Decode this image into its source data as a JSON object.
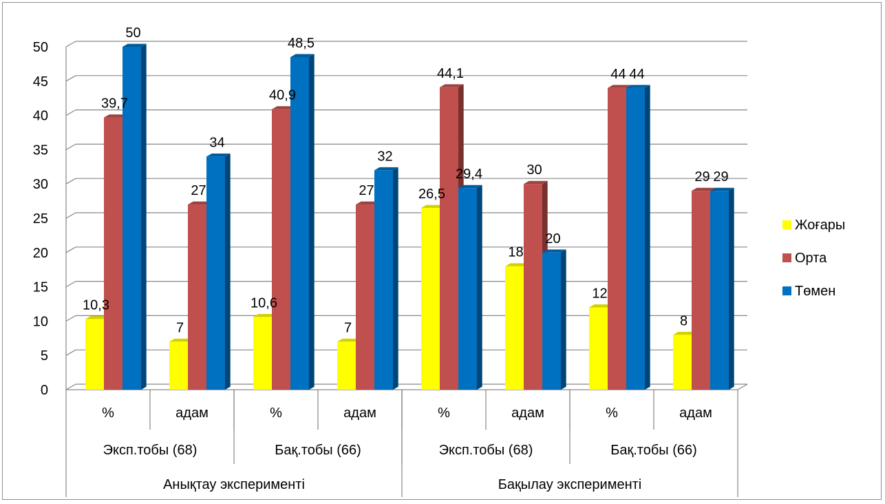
{
  "chart_data": {
    "type": "bar",
    "title": "",
    "xlabel": "",
    "ylabel": "",
    "ylim": [
      0,
      50
    ],
    "y_ticks": [
      "0",
      "5",
      "10",
      "15",
      "20",
      "25",
      "30",
      "35",
      "40",
      "45",
      "50"
    ],
    "grid": true,
    "legend_position": "right",
    "categories": [
      "%",
      "адам",
      "%",
      "адам",
      "%",
      "адам",
      "%",
      "адам"
    ],
    "category_groups": [
      {
        "label": "Эксп.тобы (68)",
        "span": 2
      },
      {
        "label": "Бақ.тобы (66)",
        "span": 2
      },
      {
        "label": "Эксп.тобы (68)",
        "span": 2
      },
      {
        "label": "Бақ.тобы (66)",
        "span": 2
      }
    ],
    "category_supergroups": [
      {
        "label": "Анықтау эксперименті",
        "span": 4
      },
      {
        "label": "Бақылау эксперименті",
        "span": 4
      }
    ],
    "series": [
      {
        "name": "Жоғары",
        "color": "#ffff00",
        "values": [
          10.3,
          7,
          10.6,
          7,
          26.5,
          18,
          12,
          8
        ],
        "labels": [
          "10,3",
          "7",
          "10,6",
          "7",
          "26,5",
          "18",
          "12",
          "8"
        ]
      },
      {
        "name": "Орта",
        "color": "#c0504d",
        "values": [
          39.7,
          27,
          40.9,
          27,
          44.1,
          30,
          44,
          29
        ],
        "labels": [
          "39,7",
          "27",
          "40,9",
          "27",
          "44,1",
          "30",
          "44",
          "29"
        ]
      },
      {
        "name": "Төмен",
        "color": "#0070c0",
        "values": [
          50,
          34,
          48.5,
          32,
          29.4,
          20,
          44,
          29
        ],
        "labels": [
          "50",
          "34",
          "48,5",
          "32",
          "29,4",
          "20",
          "44",
          "29"
        ]
      }
    ]
  }
}
